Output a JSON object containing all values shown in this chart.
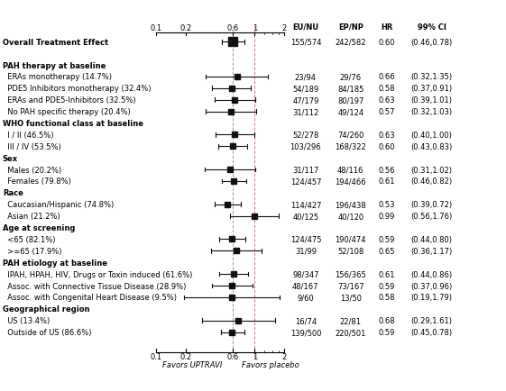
{
  "rows": [
    {
      "label": "Overall Treatment Effect",
      "indent": 0,
      "hr": 0.6,
      "ci_low": 0.46,
      "ci_high": 0.78,
      "eu_nu": "155/574",
      "ep_np": "242/582",
      "hr_str": "0.60",
      "ci_str": "(0.46,0.78)",
      "is_header": false,
      "is_overall": true
    },
    {
      "label": "",
      "indent": 0,
      "hr": null,
      "ci_low": null,
      "ci_high": null,
      "eu_nu": "",
      "ep_np": "",
      "hr_str": "",
      "ci_str": "",
      "is_header": false,
      "is_overall": false
    },
    {
      "label": "PAH therapy at baseline",
      "indent": 0,
      "hr": null,
      "ci_low": null,
      "ci_high": null,
      "eu_nu": "",
      "ep_np": "",
      "hr_str": "",
      "ci_str": "",
      "is_header": true,
      "is_overall": false
    },
    {
      "label": "  ERAs monotherapy (14.7%)",
      "indent": 1,
      "hr": 0.66,
      "ci_low": 0.32,
      "ci_high": 1.35,
      "eu_nu": "23/94",
      "ep_np": "29/76",
      "hr_str": "0.66",
      "ci_str": "(0.32,1.35)",
      "is_header": false,
      "is_overall": false
    },
    {
      "label": "  PDE5 Inhibitors monotherapy (32.4%)",
      "indent": 1,
      "hr": 0.58,
      "ci_low": 0.37,
      "ci_high": 0.91,
      "eu_nu": "54/189",
      "ep_np": "84/185",
      "hr_str": "0.58",
      "ci_str": "(0.37,0.91)",
      "is_header": false,
      "is_overall": false
    },
    {
      "label": "  ERAs and PDE5-Inhibitors (32.5%)",
      "indent": 1,
      "hr": 0.63,
      "ci_low": 0.39,
      "ci_high": 1.01,
      "eu_nu": "47/179",
      "ep_np": "80/197",
      "hr_str": "0.63",
      "ci_str": "(0.39,1.01)",
      "is_header": false,
      "is_overall": false
    },
    {
      "label": "  No PAH specific therapy (20.4%)",
      "indent": 1,
      "hr": 0.57,
      "ci_low": 0.32,
      "ci_high": 1.03,
      "eu_nu": "31/112",
      "ep_np": "49/124",
      "hr_str": "0.57",
      "ci_str": "(0.32,1.03)",
      "is_header": false,
      "is_overall": false
    },
    {
      "label": "WHO functional class at baseline",
      "indent": 0,
      "hr": null,
      "ci_low": null,
      "ci_high": null,
      "eu_nu": "",
      "ep_np": "",
      "hr_str": "",
      "ci_str": "",
      "is_header": true,
      "is_overall": false
    },
    {
      "label": "  I / II (46.5%)",
      "indent": 1,
      "hr": 0.63,
      "ci_low": 0.4,
      "ci_high": 1.0,
      "eu_nu": "52/278",
      "ep_np": "74/260",
      "hr_str": "0.63",
      "ci_str": "(0.40,1.00)",
      "is_header": false,
      "is_overall": false
    },
    {
      "label": "  III / IV (53.5%)",
      "indent": 1,
      "hr": 0.6,
      "ci_low": 0.43,
      "ci_high": 0.83,
      "eu_nu": "103/296",
      "ep_np": "168/322",
      "hr_str": "0.60",
      "ci_str": "(0.43,0.83)",
      "is_header": false,
      "is_overall": false
    },
    {
      "label": "Sex",
      "indent": 0,
      "hr": null,
      "ci_low": null,
      "ci_high": null,
      "eu_nu": "",
      "ep_np": "",
      "hr_str": "",
      "ci_str": "",
      "is_header": true,
      "is_overall": false
    },
    {
      "label": "  Males (20.2%)",
      "indent": 1,
      "hr": 0.56,
      "ci_low": 0.31,
      "ci_high": 1.02,
      "eu_nu": "31/117",
      "ep_np": "48/116",
      "hr_str": "0.56",
      "ci_str": "(0.31,1.02)",
      "is_header": false,
      "is_overall": false
    },
    {
      "label": "  Females (79.8%)",
      "indent": 1,
      "hr": 0.61,
      "ci_low": 0.46,
      "ci_high": 0.82,
      "eu_nu": "124/457",
      "ep_np": "194/466",
      "hr_str": "0.61",
      "ci_str": "(0.46,0.82)",
      "is_header": false,
      "is_overall": false
    },
    {
      "label": "Race",
      "indent": 0,
      "hr": null,
      "ci_low": null,
      "ci_high": null,
      "eu_nu": "",
      "ep_np": "",
      "hr_str": "",
      "ci_str": "",
      "is_header": true,
      "is_overall": false
    },
    {
      "label": "  Caucasian/Hispanic (74.8%)",
      "indent": 1,
      "hr": 0.53,
      "ci_low": 0.39,
      "ci_high": 0.72,
      "eu_nu": "114/427",
      "ep_np": "196/438",
      "hr_str": "0.53",
      "ci_str": "(0.39,0.72)",
      "is_header": false,
      "is_overall": false
    },
    {
      "label": "  Asian (21.2%)",
      "indent": 1,
      "hr": 0.99,
      "ci_low": 0.56,
      "ci_high": 1.76,
      "eu_nu": "40/125",
      "ep_np": "40/120",
      "hr_str": "0.99",
      "ci_str": "(0.56,1.76)",
      "is_header": false,
      "is_overall": false
    },
    {
      "label": "Age at screening",
      "indent": 0,
      "hr": null,
      "ci_low": null,
      "ci_high": null,
      "eu_nu": "",
      "ep_np": "",
      "hr_str": "",
      "ci_str": "",
      "is_header": true,
      "is_overall": false
    },
    {
      "label": "  <65 (82.1%)",
      "indent": 1,
      "hr": 0.59,
      "ci_low": 0.44,
      "ci_high": 0.8,
      "eu_nu": "124/475",
      "ep_np": "190/474",
      "hr_str": "0.59",
      "ci_str": "(0.44,0.80)",
      "is_header": false,
      "is_overall": false
    },
    {
      "label": "  >=65 (17.9%)",
      "indent": 1,
      "hr": 0.65,
      "ci_low": 0.36,
      "ci_high": 1.17,
      "eu_nu": "31/99",
      "ep_np": "52/108",
      "hr_str": "0.65",
      "ci_str": "(0.36,1.17)",
      "is_header": false,
      "is_overall": false
    },
    {
      "label": "PAH etiology at baseline",
      "indent": 0,
      "hr": null,
      "ci_low": null,
      "ci_high": null,
      "eu_nu": "",
      "ep_np": "",
      "hr_str": "",
      "ci_str": "",
      "is_header": true,
      "is_overall": false
    },
    {
      "label": "  IPAH, HPAH, HIV, Drugs or Toxin induced (61.6%)",
      "indent": 1,
      "hr": 0.61,
      "ci_low": 0.44,
      "ci_high": 0.86,
      "eu_nu": "98/347",
      "ep_np": "156/365",
      "hr_str": "0.61",
      "ci_str": "(0.44,0.86)",
      "is_header": false,
      "is_overall": false
    },
    {
      "label": "  Assoc. with Connective Tissue Disease (28.9%)",
      "indent": 1,
      "hr": 0.59,
      "ci_low": 0.37,
      "ci_high": 0.96,
      "eu_nu": "48/167",
      "ep_np": "73/167",
      "hr_str": "0.59",
      "ci_str": "(0.37,0.96)",
      "is_header": false,
      "is_overall": false
    },
    {
      "label": "  Assoc. with Congenital Heart Disease (9.5%)",
      "indent": 1,
      "hr": 0.58,
      "ci_low": 0.19,
      "ci_high": 1.79,
      "eu_nu": "9/60",
      "ep_np": "13/50",
      "hr_str": "0.58",
      "ci_str": "(0.19,1.79)",
      "is_header": false,
      "is_overall": false
    },
    {
      "label": "Geographical region",
      "indent": 0,
      "hr": null,
      "ci_low": null,
      "ci_high": null,
      "eu_nu": "",
      "ep_np": "",
      "hr_str": "",
      "ci_str": "",
      "is_header": true,
      "is_overall": false
    },
    {
      "label": "  US (13.4%)",
      "indent": 1,
      "hr": 0.68,
      "ci_low": 0.29,
      "ci_high": 1.61,
      "eu_nu": "16/74",
      "ep_np": "22/81",
      "hr_str": "0.68",
      "ci_str": "(0.29,1.61)",
      "is_header": false,
      "is_overall": false
    },
    {
      "label": "  Outside of US (86.6%)",
      "indent": 1,
      "hr": 0.59,
      "ci_low": 0.45,
      "ci_high": 0.78,
      "eu_nu": "139/500",
      "ep_np": "220/501",
      "hr_str": "0.59",
      "ci_str": "(0.45,0.78)",
      "is_header": false,
      "is_overall": false
    }
  ],
  "xscale_ticks": [
    0.1,
    0.2,
    0.6,
    1,
    2
  ],
  "xscale_ticks_labels": [
    "0.1",
    "0.2",
    "0.6",
    "1",
    "2"
  ],
  "vline_hr": 0.6,
  "vline_null": 1.0,
  "col_headers": [
    "EU/NU",
    "EP/NP",
    "HR",
    "99% CI"
  ],
  "favors_left": "Favors UPTRAVI",
  "favors_right": "Favors placebo",
  "bg_color": "#ffffff",
  "marker_color": "#111111",
  "line_color": "#111111",
  "vline_color_green": "#80b080",
  "vline_color_pink": "#c08090",
  "lbl_fontsize": 6.0,
  "col_fontsize": 6.0
}
